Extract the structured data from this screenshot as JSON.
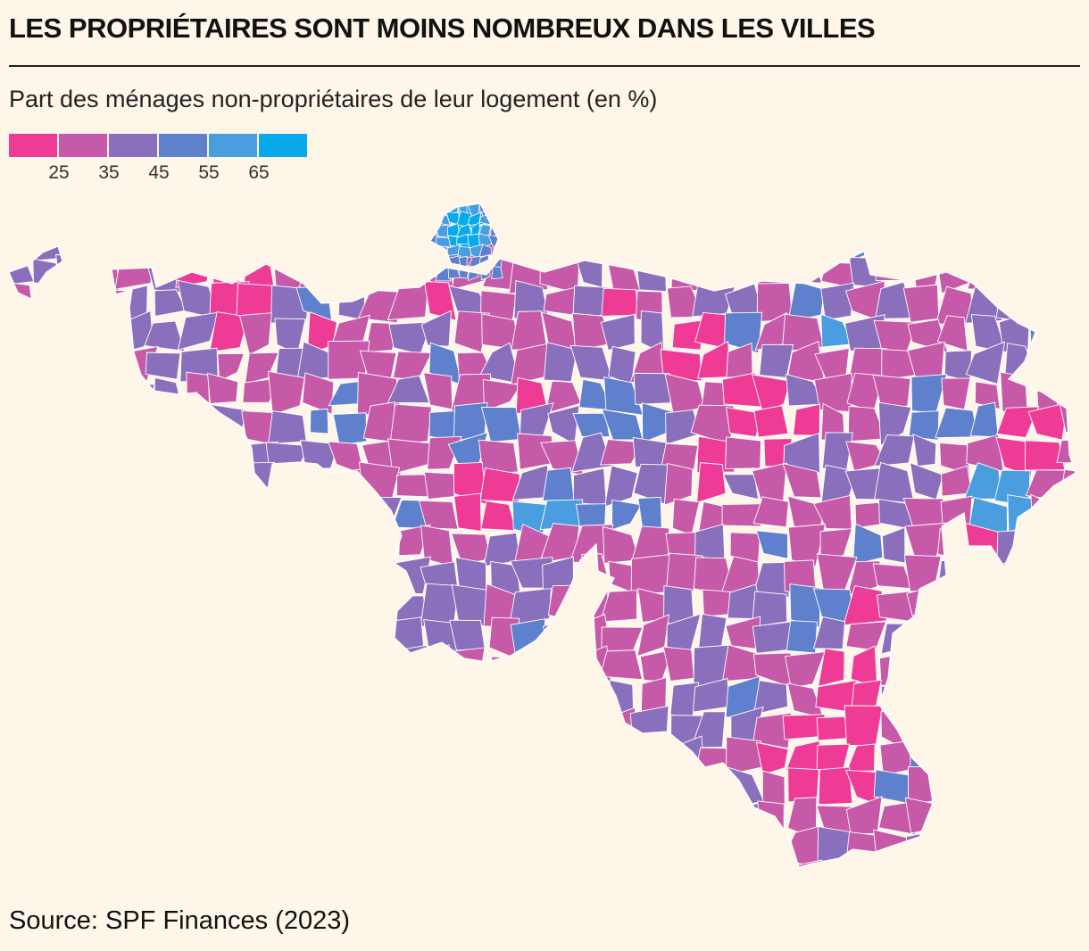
{
  "title": "LES PROPRIÉTAIRES SONT MOINS NOMBREUX DANS LES VILLES",
  "subtitle": "Part des ménages non-propriétaires de leur logement (en %)",
  "legend": {
    "colors": [
      "#ee3c96",
      "#c65aa8",
      "#8a6fbd",
      "#5f80cc",
      "#4a9ee0",
      "#0aa9ec"
    ],
    "ticks": [
      "25",
      "35",
      "45",
      "55",
      "65"
    ]
  },
  "source": "Source: SPF Finances (2023)",
  "map": {
    "region": "Wallonie et Bruxelles",
    "border_color": "#ffffff"
  }
}
